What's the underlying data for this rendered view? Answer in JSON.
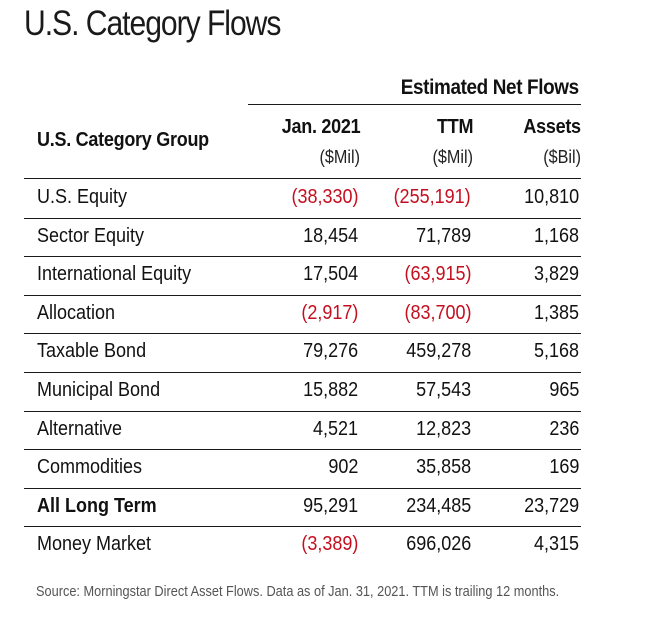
{
  "title": "U.S. Category Flows",
  "table": {
    "group_header": "Estimated Net Flows",
    "columns": {
      "category": "U.S. Category Group",
      "jan": {
        "label": "Jan. 2021",
        "unit": "($Mil)"
      },
      "ttm": {
        "label": "TTM",
        "unit": "($Mil)"
      },
      "assets": {
        "label": "Assets",
        "unit": "($Bil)"
      }
    },
    "rows": [
      {
        "category": "U.S. Equity",
        "jan": "(38,330)",
        "ttm": "(255,191)",
        "assets": "10,810"
      },
      {
        "category": "Sector Equity",
        "jan": "18,454",
        "ttm": "71,789",
        "assets": "1,168"
      },
      {
        "category": "International Equity",
        "jan": "17,504",
        "ttm": "(63,915)",
        "assets": "3,829"
      },
      {
        "category": "Allocation",
        "jan": "(2,917)",
        "ttm": "(83,700)",
        "assets": "1,385"
      },
      {
        "category": "Taxable Bond",
        "jan": "79,276",
        "ttm": "459,278",
        "assets": "5,168"
      },
      {
        "category": "Municipal Bond",
        "jan": "15,882",
        "ttm": "57,543",
        "assets": "965"
      },
      {
        "category": "Alternative",
        "jan": "4,521",
        "ttm": "12,823",
        "assets": "236"
      },
      {
        "category": "Commodities",
        "jan": "902",
        "ttm": "35,858",
        "assets": "169"
      },
      {
        "category": "All Long Term",
        "jan": "95,291",
        "ttm": "234,485",
        "assets": "23,729"
      },
      {
        "category": "Money Market",
        "jan": "(3,389)",
        "ttm": "696,026",
        "assets": "4,315"
      }
    ],
    "negative_color": "#c40f1f"
  },
  "source": "Source: Morningstar Direct Asset Flows. Data as of Jan. 31, 2021. TTM is trailing 12 months."
}
